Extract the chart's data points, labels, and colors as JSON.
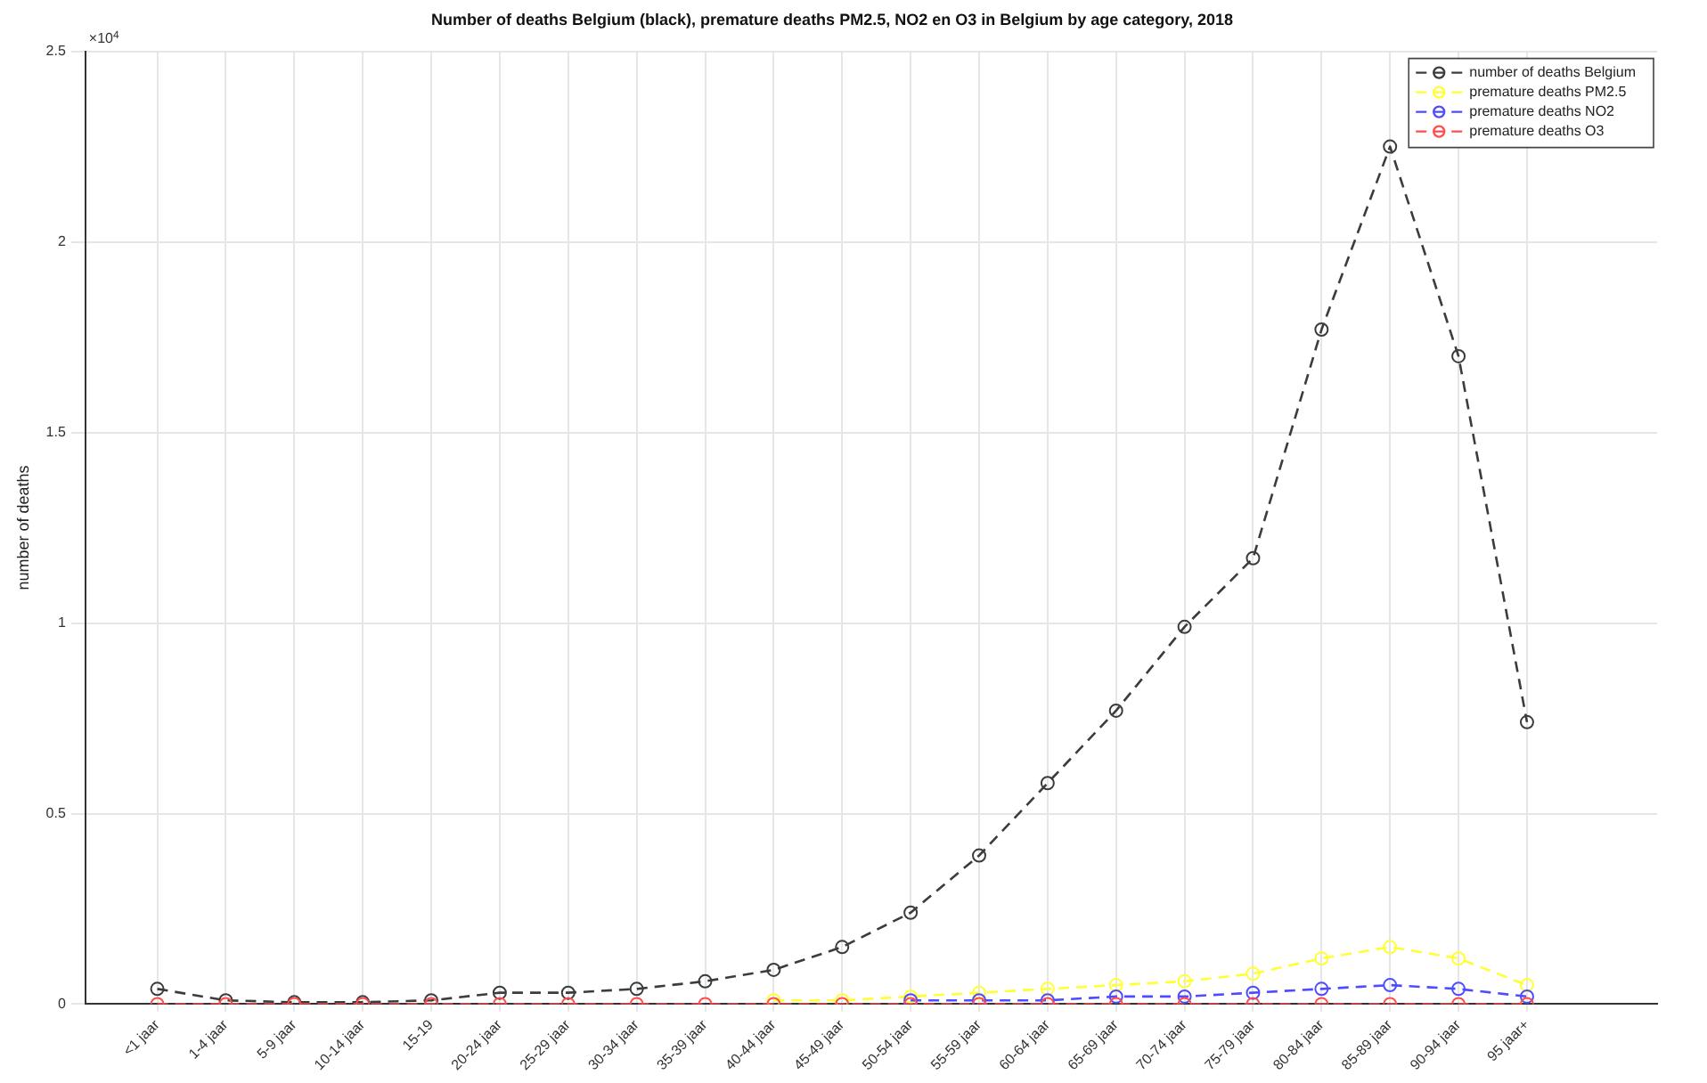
{
  "chart_data": {
    "type": "line",
    "title": "Number of deaths Belgium (black), premature deaths PM2.5, NO2 en O3 in Belgium by age category, 2018",
    "ylabel": "number of deaths",
    "annotations": [
      "×10$^{4}$"
    ],
    "categories": [
      "<1 jaar",
      "1-4 jaar",
      "5-9 jaar",
      "10-14 jaar",
      "15-19",
      "20-24 jaar",
      "25-29 jaar",
      "30-34 jaar",
      "35-39 jaar",
      "40-44 jaar",
      "45-49 jaar",
      "50-54 jaar",
      "55-59 jaar",
      "60-64 jaar",
      "65-69 jaar",
      "70-74 jaar",
      "75-79 jaar",
      "80-84 jaar",
      "85-89 jaar",
      "90-94 jaar",
      "95 jaar+"
    ],
    "series": [
      {
        "name": "number of deaths Belgium",
        "color": "#3c3c3c",
        "values": [
          0.04,
          0.01,
          0.005,
          0.005,
          0.01,
          0.03,
          0.03,
          0.04,
          0.06,
          0.09,
          0.15,
          0.24,
          0.39,
          0.58,
          0.77,
          0.99,
          1.17,
          1.77,
          2.25,
          1.7,
          0.74
        ]
      },
      {
        "name": "premature deaths PM2.5",
        "color": "#ffff33",
        "values": [
          null,
          null,
          null,
          null,
          null,
          null,
          null,
          null,
          null,
          0.01,
          0.01,
          0.02,
          0.03,
          0.04,
          0.05,
          0.06,
          0.08,
          0.12,
          0.15,
          0.12,
          0.05
        ]
      },
      {
        "name": "premature deaths NO2",
        "color": "#4d4dff",
        "values": [
          null,
          null,
          null,
          null,
          null,
          null,
          null,
          null,
          null,
          null,
          null,
          0.01,
          0.01,
          0.01,
          0.02,
          0.02,
          0.03,
          0.04,
          0.05,
          0.04,
          0.02
        ]
      },
      {
        "name": "premature deaths O3",
        "color": "#ff4d4d",
        "values": [
          0,
          0,
          0,
          0,
          0,
          0,
          0,
          0,
          0,
          0,
          0,
          0,
          0,
          0,
          0,
          0,
          0,
          0,
          0,
          0,
          0
        ]
      }
    ],
    "ylim": [
      0,
      2.5
    ],
    "yticks": [
      0,
      0.5,
      1,
      1.5,
      2,
      2.5
    ],
    "grid": true,
    "legend": "top right",
    "marker": "circle",
    "line_style": "dashed"
  }
}
